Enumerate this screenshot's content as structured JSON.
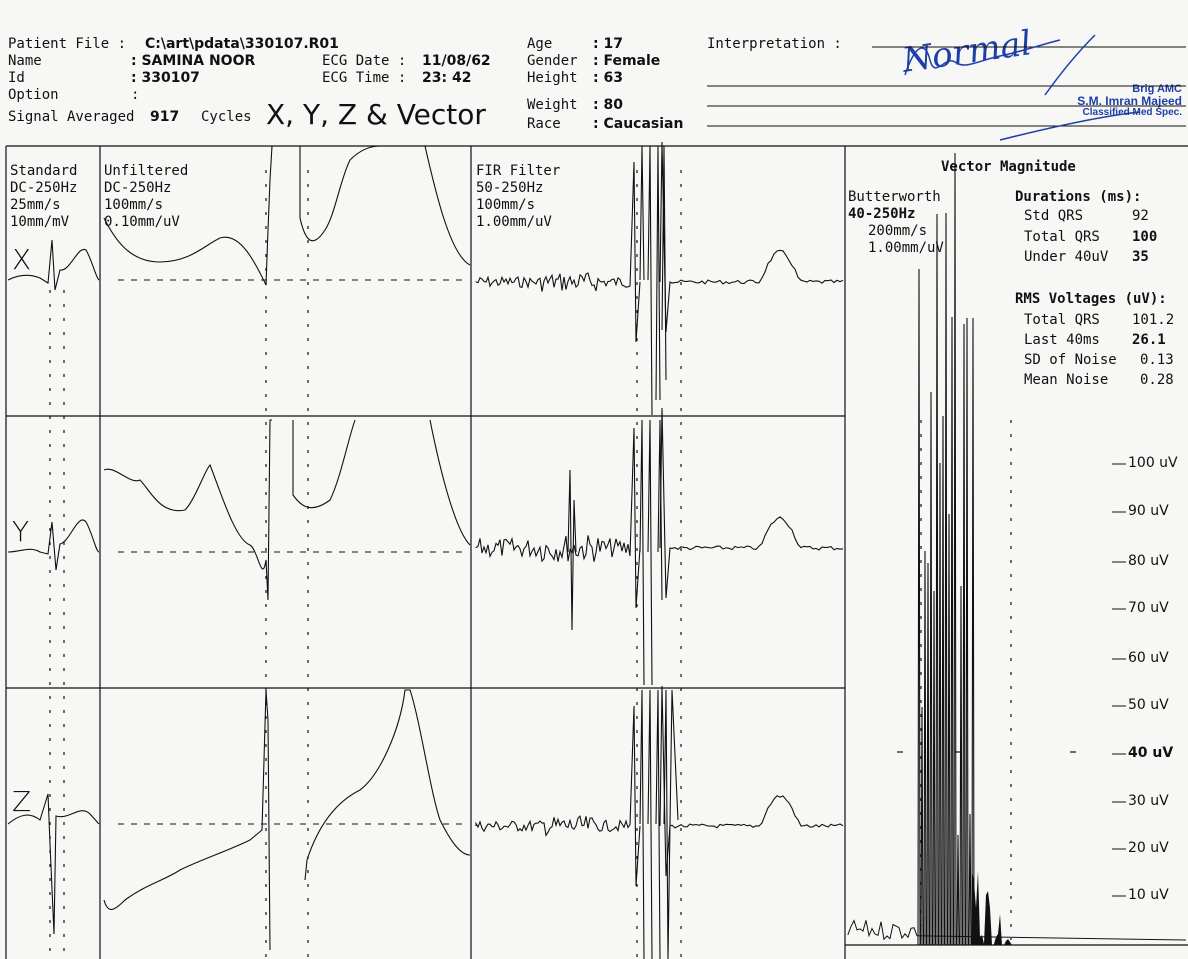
{
  "header": {
    "patient_file_label": "Patient File :",
    "patient_file_value": "C:\\art\\pdata\\330107.R01",
    "name_label": "Name",
    "name_value": ": SAMINA NOOR",
    "id_label": "Id",
    "id_value": ": 330107",
    "option_label": "Option",
    "option_value": ":",
    "signal_prefix": "Signal Averaged",
    "signal_cycles": "917",
    "signal_suffix": "Cycles",
    "signal_title": "X, Y, Z & Vector",
    "ecg_date_label": "ECG Date :",
    "ecg_date_value": "11/08/62",
    "ecg_time_label": "ECG Time :",
    "ecg_time_value": "23: 42",
    "age_label": "Age",
    "age_value": ": 17",
    "gender_label": "Gender",
    "gender_value": ": Female",
    "height_label": "Height",
    "height_value": ": 63",
    "weight_label": "Weight",
    "weight_value": ": 80",
    "race_label": "Race",
    "race_value": ": Caucasian",
    "interpretation_label": "Interpretation :",
    "interpretation_value": "Normal",
    "stamp_line1": "Brig AMC",
    "stamp_line2": "S.M. Imran Majeed",
    "stamp_line3": "Classified Med Spec."
  },
  "panels": {
    "standard": [
      "Standard",
      "DC-250Hz",
      "25mm/s",
      "10mm/mV"
    ],
    "unfiltered": [
      "Unfiltered",
      "DC-250Hz",
      "100mm/s",
      "0.10mm/uV"
    ],
    "fir": [
      "FIR Filter",
      "50-250Hz",
      "100mm/s",
      "1.00mm/uV"
    ],
    "butterworth": [
      "Butterworth",
      "40-250Hz",
      "200mm/s",
      "1.00mm/uV"
    ]
  },
  "leads": {
    "x": "X",
    "y": "Y",
    "z": "Z"
  },
  "vector": {
    "title": "Vector Magnitude",
    "durations_title": "Durations (ms):",
    "std_qrs_label": "Std QRS",
    "std_qrs_value": "92",
    "total_qrs_label": "Total QRS",
    "total_qrs_value": "100",
    "under40_label": "Under 40uV",
    "under40_value": "35",
    "rms_title": "RMS Voltages (uV):",
    "rms_total_label": "Total QRS",
    "rms_total_value": "101.2",
    "last40_label": "Last 40ms",
    "last40_value": "26.1",
    "sd_noise_label": "SD of Noise",
    "sd_noise_value": "0.13",
    "mean_noise_label": "Mean Noise",
    "mean_noise_value": "0.28"
  },
  "scale_labels": [
    "100 uV",
    "90 uV",
    "80 uV",
    "70 uV",
    "60 uV",
    "50 uV",
    "40 uV",
    "30 uV",
    "20 uV",
    "10 uV"
  ]
}
